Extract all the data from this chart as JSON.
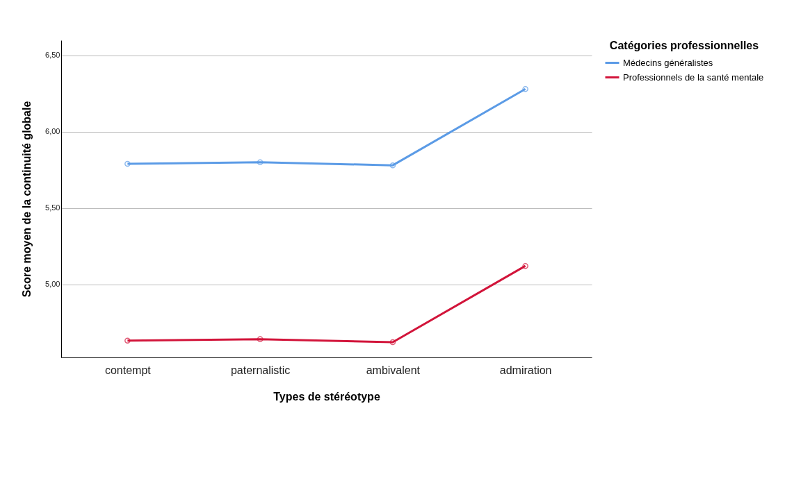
{
  "chart_data": {
    "type": "line",
    "xlabel": "Types de stéréotype",
    "ylabel": "Score moyen de la continuité globale",
    "legend_title": "Catégories professionnelles",
    "categories": [
      "contempt",
      "paternalistic",
      "ambivalent",
      "admiration"
    ],
    "series": [
      {
        "name": "Médecins généralistes",
        "color": "#5b9be6",
        "values": [
          5.79,
          5.8,
          5.78,
          6.28
        ]
      },
      {
        "name": "Professionnels de la santé mentale",
        "color": "#d2143a",
        "values": [
          4.63,
          4.64,
          4.62,
          5.12
        ]
      }
    ],
    "ylim": [
      4.52,
      6.6
    ],
    "yticks": [
      {
        "value": 5,
        "label": "5,00"
      },
      {
        "value": 5.5,
        "label": "5,50"
      },
      {
        "value": 6,
        "label": "6,00"
      },
      {
        "value": 6.5,
        "label": "6,50"
      }
    ],
    "grid": "y",
    "legend": "top right",
    "marker": "circle",
    "line_style": "solid"
  }
}
